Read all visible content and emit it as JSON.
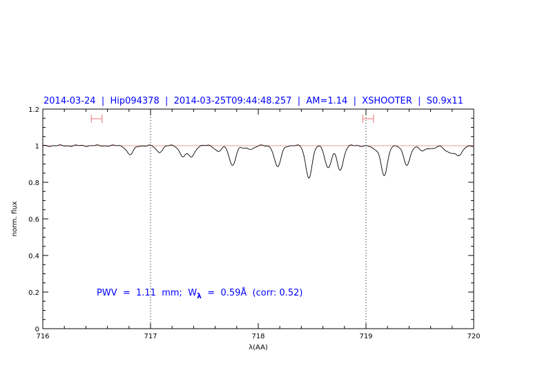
{
  "chart_data": {
    "type": "line",
    "title": "2014-03-24  |  Hip094378  |  2014-03-25T09:44:48.257  |  AM=1.14  |  XSHOOTER  |  S0.9x11",
    "xlabel": "λ(AA)",
    "ylabel": "norm. flux",
    "xlim": [
      716,
      720
    ],
    "ylim": [
      0,
      1.2
    ],
    "xticks": [
      "716",
      "717",
      "718",
      "719",
      "720"
    ],
    "yticks": [
      "0",
      "0.2",
      "0.4",
      "0.6",
      "0.8",
      "1",
      "1.2"
    ],
    "grid": false,
    "reference_line": 1,
    "vertical_dotted_lines": [
      717,
      719
    ],
    "range_markers": [
      [
        716.45,
        716.55
      ],
      [
        718.97,
        719.07
      ]
    ],
    "annotation": {
      "pwv": "PWV  =  1.11  mm;  W",
      "sub": "λ",
      "rest": "  =  0.59Å  (corr: 0.52)"
    },
    "absorption_lines": [
      {
        "center": 716.81,
        "min_flux": 0.95
      },
      {
        "center": 717.08,
        "min_flux": 0.966
      },
      {
        "center": 717.3,
        "min_flux": 0.943
      },
      {
        "center": 717.38,
        "min_flux": 0.94
      },
      {
        "center": 717.63,
        "min_flux": 0.97
      },
      {
        "center": 717.76,
        "min_flux": 0.894
      },
      {
        "center": 717.87,
        "min_flux": 0.985
      },
      {
        "center": 717.94,
        "min_flux": 0.985
      },
      {
        "center": 718.18,
        "min_flux": 0.883
      },
      {
        "center": 718.47,
        "min_flux": 0.826
      },
      {
        "center": 718.65,
        "min_flux": 0.879
      },
      {
        "center": 718.76,
        "min_flux": 0.868
      },
      {
        "center": 719.08,
        "min_flux": 0.98
      },
      {
        "center": 719.17,
        "min_flux": 0.838
      },
      {
        "center": 719.38,
        "min_flux": 0.891
      },
      {
        "center": 719.53,
        "min_flux": 0.97
      },
      {
        "center": 719.61,
        "min_flux": 0.985
      },
      {
        "center": 719.75,
        "min_flux": 0.97
      },
      {
        "center": 719.81,
        "min_flux": 0.97
      },
      {
        "center": 719.87,
        "min_flux": 0.95
      }
    ],
    "colors": {
      "title": "#0000ff",
      "annotation": "#0000ff",
      "spectrum": "#000000",
      "reference": "#e87878",
      "markers": "#f07070"
    }
  }
}
